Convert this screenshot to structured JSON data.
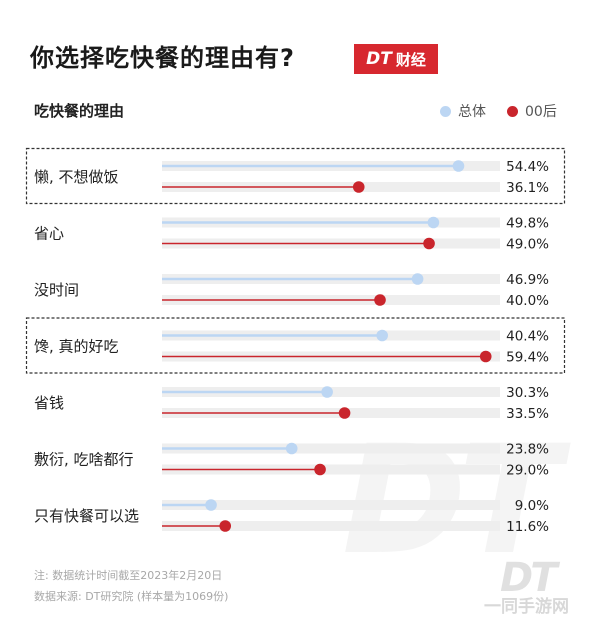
{
  "header": {
    "title": "你选择吃快餐的理由有?",
    "badge_logo": "DT",
    "badge_text": "财经"
  },
  "colors": {
    "overall": "#bcd6f3",
    "post00": "#c9252c",
    "track": "#eeeeee"
  },
  "chart_data": {
    "type": "bar",
    "subtitle": "吃快餐的理由",
    "xlim": [
      0,
      60
    ],
    "categories": [
      "懒, 不想做饭",
      "省心",
      "没时间",
      "馋, 真的好吃",
      "省钱",
      "敷衍, 吃啥都行",
      "只有快餐可以选"
    ],
    "series": [
      {
        "name": "总体",
        "values": [
          54.4,
          49.8,
          46.9,
          40.4,
          30.3,
          23.8,
          9.0
        ],
        "labels": [
          "54.4%",
          "49.8%",
          "46.9%",
          "40.4%",
          "30.3%",
          "23.8%",
          "9.0%"
        ]
      },
      {
        "name": "00后",
        "values": [
          36.1,
          49.0,
          40.0,
          59.4,
          33.5,
          29.0,
          11.6
        ],
        "labels": [
          "36.1%",
          "49.0%",
          "40.0%",
          "59.4%",
          "33.5%",
          "29.0%",
          "11.6%"
        ]
      }
    ],
    "highlighted": [
      "懒, 不想做饭",
      "馋, 真的好吃"
    ]
  },
  "footer": {
    "note": "注: 数据统计时间截至2023年2月20日",
    "source": "数据来源: DT研究院 (样本量为1069份)"
  },
  "watermark": {
    "big": "DT",
    "corner": "DT",
    "site": "一同手游网"
  }
}
